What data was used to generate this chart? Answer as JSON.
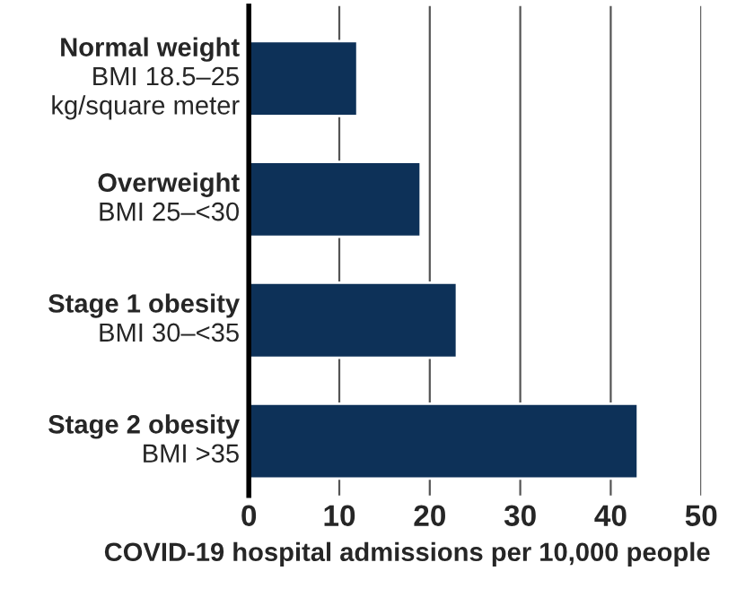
{
  "chart_data": {
    "type": "bar",
    "orientation": "horizontal",
    "categories": [
      "Normal weight\nBMI 18.5–25\nkg/square meter",
      "Overweight\nBMI 25–<30",
      "Stage 1 obesity\nBMI 30–<35",
      "Stage 2 obesity\nBMI >35"
    ],
    "values": [
      12,
      19,
      23,
      43
    ],
    "color": "#0d3158",
    "xlim": [
      0,
      50
    ],
    "xticks": [
      0,
      10,
      20,
      30,
      40,
      50
    ],
    "grid": "x",
    "xlabel": "COVID-19 hospital admissions per 10,000 people"
  }
}
